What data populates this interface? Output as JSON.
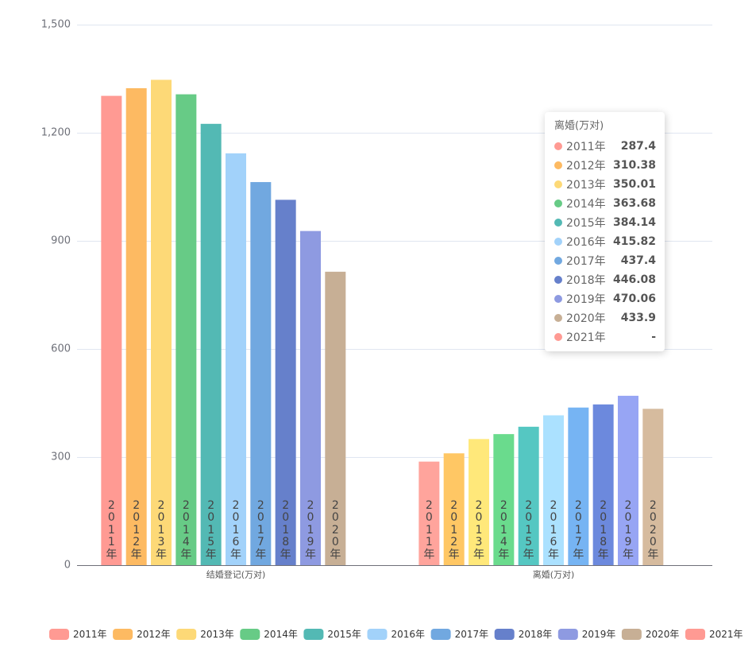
{
  "chart_data": {
    "type": "bar",
    "categories": [
      "结婚登记(万对)",
      "离婚(万对)"
    ],
    "ylim": [
      0,
      1500
    ],
    "y_ticks": [
      0,
      300,
      600,
      900,
      1200,
      1500
    ],
    "y_tick_labels": [
      "0",
      "300",
      "600",
      "900",
      "1,200",
      "1,500"
    ],
    "grid": true,
    "legend_position": "bottom",
    "series": [
      {
        "name": "2011年",
        "color": "#FF9A93",
        "values": [
          1302.4,
          287.4
        ]
      },
      {
        "name": "2012年",
        "color": "#FDBA62",
        "values": [
          1323.6,
          310.38
        ]
      },
      {
        "name": "2013年",
        "color": "#FDD977",
        "values": [
          1346.9,
          350.01
        ]
      },
      {
        "name": "2014年",
        "color": "#67CB86",
        "values": [
          1306.7,
          363.68
        ]
      },
      {
        "name": "2015年",
        "color": "#53B9B4",
        "values": [
          1224.7,
          384.14
        ]
      },
      {
        "name": "2016年",
        "color": "#A2D2FA",
        "values": [
          1142.8,
          415.82
        ]
      },
      {
        "name": "2017年",
        "color": "#71A8E0",
        "values": [
          1063.1,
          437.4
        ]
      },
      {
        "name": "2018年",
        "color": "#6680CB",
        "values": [
          1013.9,
          446.08
        ]
      },
      {
        "name": "2019年",
        "color": "#8E9AE1",
        "values": [
          927.3,
          470.06
        ]
      },
      {
        "name": "2020年",
        "color": "#C7AF95",
        "values": [
          814.3,
          433.9
        ]
      },
      {
        "name": "2021年",
        "color": "#FF9A93",
        "values": [
          null,
          null
        ]
      }
    ]
  },
  "tooltip": {
    "title": "离婚(万对)",
    "rows": [
      {
        "name": "2011年",
        "value": "287.4"
      },
      {
        "name": "2012年",
        "value": "310.38"
      },
      {
        "name": "2013年",
        "value": "350.01"
      },
      {
        "name": "2014年",
        "value": "363.68"
      },
      {
        "name": "2015年",
        "value": "384.14"
      },
      {
        "name": "2016年",
        "value": "415.82"
      },
      {
        "name": "2017年",
        "value": "437.4"
      },
      {
        "name": "2018年",
        "value": "446.08"
      },
      {
        "name": "2019年",
        "value": "470.06"
      },
      {
        "name": "2020年",
        "value": "433.9"
      },
      {
        "name": "2021年",
        "value": "-"
      }
    ]
  }
}
